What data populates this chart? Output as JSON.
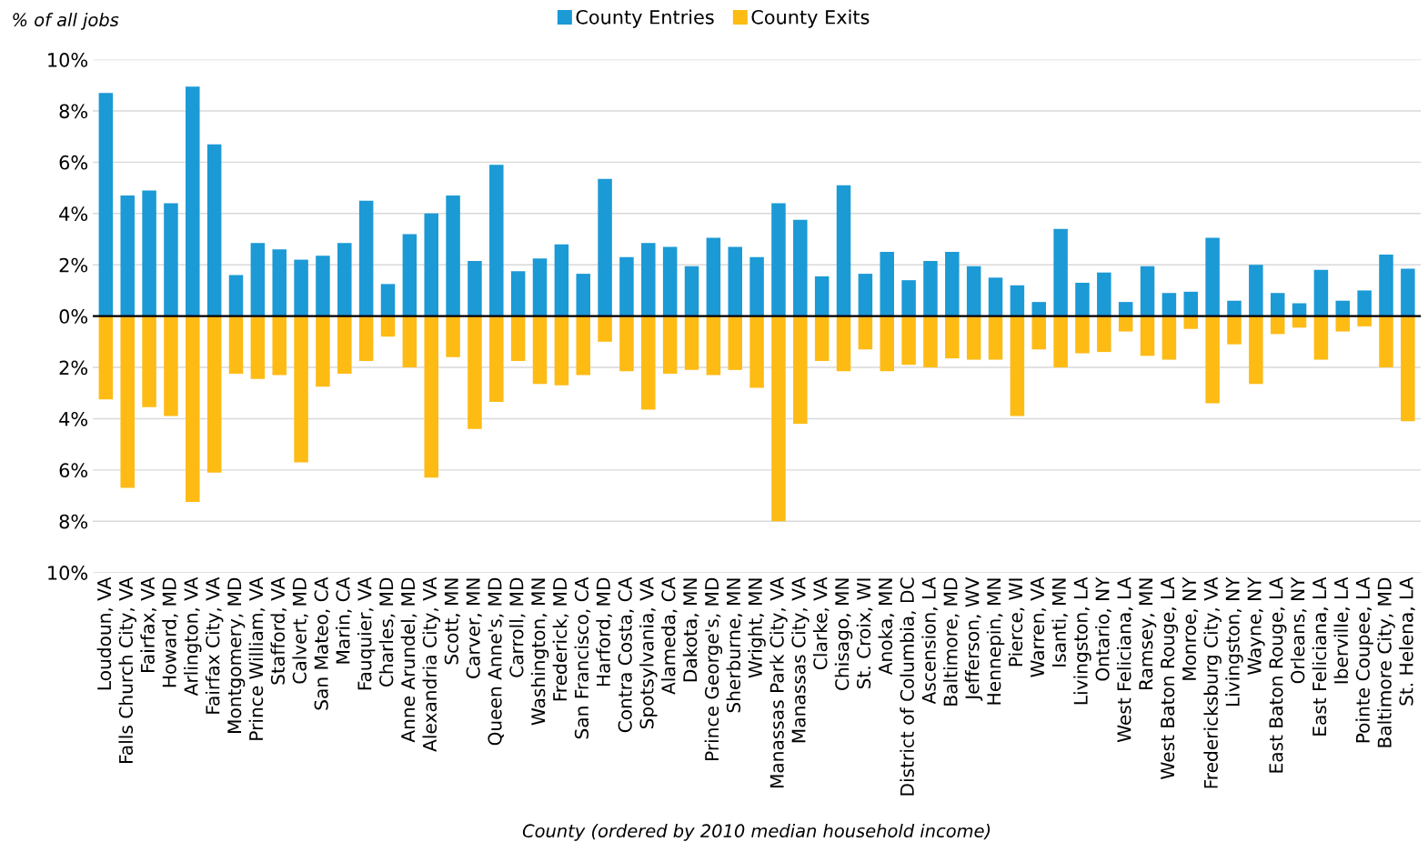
{
  "chart_data": {
    "type": "bar",
    "stacked": true,
    "ylabel": "% of all jobs",
    "xlabel": "County (ordered by 2010 median household income)",
    "categories": [
      "Loudoun, VA",
      "Falls Church City, VA",
      "Fairfax, VA",
      "Howard, MD",
      "Arlington, VA",
      "Fairfax City, VA",
      "Montgomery, MD",
      "Prince William, VA",
      "Stafford, VA",
      "Calvert, MD",
      "San Mateo, CA",
      "Marin, CA",
      "Fauquier, VA",
      "Charles, MD",
      "Anne Arundel, MD",
      "Alexandria City, VA",
      "Scott, MN",
      "Carver, MN",
      "Queen Anne's, MD",
      "Carroll, MD",
      "Washington, MN",
      "Frederick, MD",
      "San Francisco, CA",
      "Harford, MD",
      "Contra Costa, CA",
      "Spotsylvania, VA",
      "Alameda, CA",
      "Dakota, MN",
      "Prince George's, MD",
      "Sherburne, MN",
      "Wright, MN",
      "Manassas Park City, VA",
      "Manassas City, VA",
      "Clarke, VA",
      "Chisago, MN",
      "St. Croix, WI",
      "Anoka, MN",
      "District of Columbia, DC",
      "Ascension, LA",
      "Baltimore, MD",
      "Jefferson, WV",
      "Hennepin, MN",
      "Pierce, WI",
      "Warren, VA",
      "Isanti, MN",
      "Livingston, LA",
      "Ontario, NY",
      "West Feliciana, LA",
      "Ramsey, MN",
      "West Baton Rouge, LA",
      "Monroe, NY",
      "Fredericksburg City, VA",
      "Livingston, NY",
      "Wayne, NY",
      "East Baton Rouge, LA",
      "Orleans, NY",
      "East Feliciana, LA",
      "Iberville, LA",
      "Pointe Coupee, LA",
      "Baltimore City, MD",
      "St. Helena, LA"
    ],
    "series": [
      {
        "name": "County Entries",
        "color": "#1b9ad6",
        "values": [
          8.7,
          4.7,
          4.9,
          4.4,
          8.95,
          6.7,
          1.6,
          2.85,
          2.6,
          2.2,
          2.35,
          2.85,
          4.5,
          1.25,
          3.2,
          4.0,
          4.7,
          2.15,
          5.9,
          1.75,
          2.25,
          2.8,
          1.65,
          5.35,
          2.3,
          2.85,
          2.7,
          1.95,
          3.05,
          2.7,
          2.3,
          4.4,
          3.75,
          1.55,
          5.1,
          1.65,
          2.5,
          1.4,
          2.15,
          2.5,
          1.95,
          1.5,
          1.2,
          0.55,
          3.4,
          1.3,
          1.7,
          0.55,
          1.95,
          0.9,
          0.95,
          3.05,
          0.6,
          2.0,
          0.9,
          0.5,
          1.8,
          0.6,
          1.0,
          2.4,
          1.85
        ]
      },
      {
        "name": "County Exits",
        "color": "#fdbb14",
        "values": [
          -3.25,
          -6.7,
          -3.55,
          -3.9,
          -7.25,
          -6.1,
          -2.25,
          -2.45,
          -2.3,
          -5.7,
          -2.75,
          -2.25,
          -1.75,
          -0.8,
          -2.0,
          -6.3,
          -1.6,
          -4.4,
          -3.35,
          -1.75,
          -2.65,
          -2.7,
          -2.3,
          -1.0,
          -2.15,
          -3.65,
          -2.25,
          -2.1,
          -2.3,
          -2.1,
          -2.8,
          -8.0,
          -4.2,
          -1.75,
          -2.15,
          -1.3,
          -2.15,
          -1.9,
          -2.0,
          -1.65,
          -1.7,
          -1.7,
          -3.9,
          -1.3,
          -2.0,
          -1.45,
          -1.4,
          -0.6,
          -1.55,
          -1.7,
          -0.5,
          -3.4,
          -1.1,
          -2.65,
          -0.7,
          -0.45,
          -1.7,
          -0.6,
          -0.4,
          -2.0,
          -4.1
        ]
      }
    ],
    "ylim": [
      -10,
      10
    ],
    "yticks": [
      {
        "value": -10,
        "label": "10%"
      },
      {
        "value": -8,
        "label": "8%"
      },
      {
        "value": -6,
        "label": "6%"
      },
      {
        "value": -4,
        "label": "4%"
      },
      {
        "value": -2,
        "label": "2%"
      },
      {
        "value": 0,
        "label": "0%"
      },
      {
        "value": 2,
        "label": "2%"
      },
      {
        "value": 4,
        "label": "4%"
      },
      {
        "value": 6,
        "label": "6%"
      },
      {
        "value": 8,
        "label": "8%"
      },
      {
        "value": 10,
        "label": "10%"
      }
    ],
    "grid": "y",
    "legend": "top"
  }
}
